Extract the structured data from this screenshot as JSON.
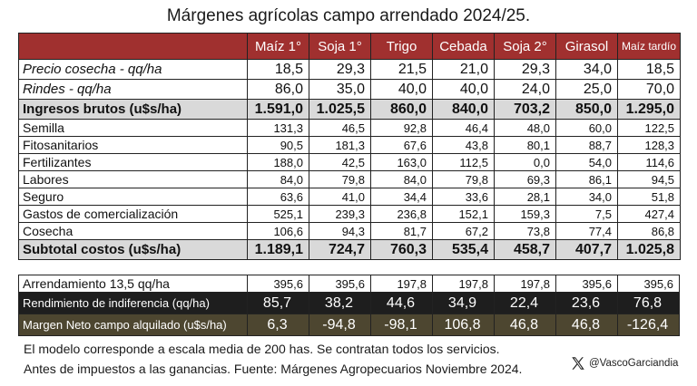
{
  "title": "Márgenes agrícolas campo arrendado 2024/25.",
  "columns": [
    "Maíz 1°",
    "Soja 1°",
    "Trigo",
    "Cebada",
    "Soja 2°",
    "Girasol",
    "Maíz tardío"
  ],
  "rows_main": [
    {
      "label": "Precio cosecha - qq/ha",
      "values": [
        "18,5",
        "29,3",
        "21,5",
        "21,0",
        "29,3",
        "34,0",
        "18,5"
      ]
    },
    {
      "label": "Rindes - qq/ha",
      "values": [
        "86,0",
        "35,0",
        "40,0",
        "40,0",
        "24,0",
        "25,0",
        "70,0"
      ]
    }
  ],
  "ingresos": {
    "label": "Ingresos brutos (u$s/ha)",
    "values": [
      "1.591,0",
      "1.025,5",
      "860,0",
      "840,0",
      "703,2",
      "850,0",
      "1.295,0"
    ]
  },
  "costs": [
    {
      "label": "Semilla",
      "values": [
        "131,3",
        "46,5",
        "92,8",
        "46,4",
        "48,0",
        "60,0",
        "122,5"
      ]
    },
    {
      "label": "Fitosanitarios",
      "values": [
        "90,5",
        "181,3",
        "67,6",
        "43,8",
        "80,1",
        "88,7",
        "128,3"
      ]
    },
    {
      "label": "Fertilizantes",
      "values": [
        "188,0",
        "42,5",
        "163,0",
        "112,5",
        "0,0",
        "54,0",
        "114,6"
      ]
    },
    {
      "label": "Labores",
      "values": [
        "84,0",
        "79,8",
        "84,0",
        "79,8",
        "69,3",
        "86,1",
        "94,5"
      ]
    },
    {
      "label": "Seguro",
      "values": [
        "63,6",
        "41,0",
        "34,4",
        "33,6",
        "28,1",
        "34,0",
        "51,8"
      ]
    },
    {
      "label": "Gastos de comercialización",
      "values": [
        "525,1",
        "239,3",
        "236,8",
        "152,1",
        "159,3",
        "7,5",
        "427,4"
      ]
    },
    {
      "label": "Cosecha",
      "values": [
        "106,6",
        "94,3",
        "81,7",
        "67,2",
        "73,8",
        "77,4",
        "86,8"
      ]
    }
  ],
  "subtotal": {
    "label": "Subtotal costos (u$s/ha)",
    "values": [
      "1.189,1",
      "724,7",
      "760,3",
      "535,4",
      "458,7",
      "407,7",
      "1.025,8"
    ]
  },
  "arrendamiento": {
    "label": "Arrendamiento 13,5 qq/ha",
    "values": [
      "395,6",
      "395,6",
      "197,8",
      "197,8",
      "197,8",
      "395,6",
      "395,6"
    ]
  },
  "rendimiento": {
    "label": "Rendimiento de indiferencia (qq/ha)",
    "values": [
      "85,7",
      "38,2",
      "44,6",
      "34,9",
      "22,4",
      "23,6",
      "76,8"
    ]
  },
  "margen": {
    "label": "Margen Neto campo alquilado (u$s/ha)",
    "values": [
      "6,3",
      "-94,8",
      "-98,1",
      "106,8",
      "46,8",
      "46,8",
      "-126,4"
    ]
  },
  "notes": [
    "El modelo corresponde a escala media de 200 has. Se contratan todos los servicios.",
    "Antes de impuestos a las ganancias. Fuente: Márgenes Agropecuarios Noviembre 2024."
  ],
  "handle": "@VascoGarciandia",
  "icon": "x-logo-icon"
}
